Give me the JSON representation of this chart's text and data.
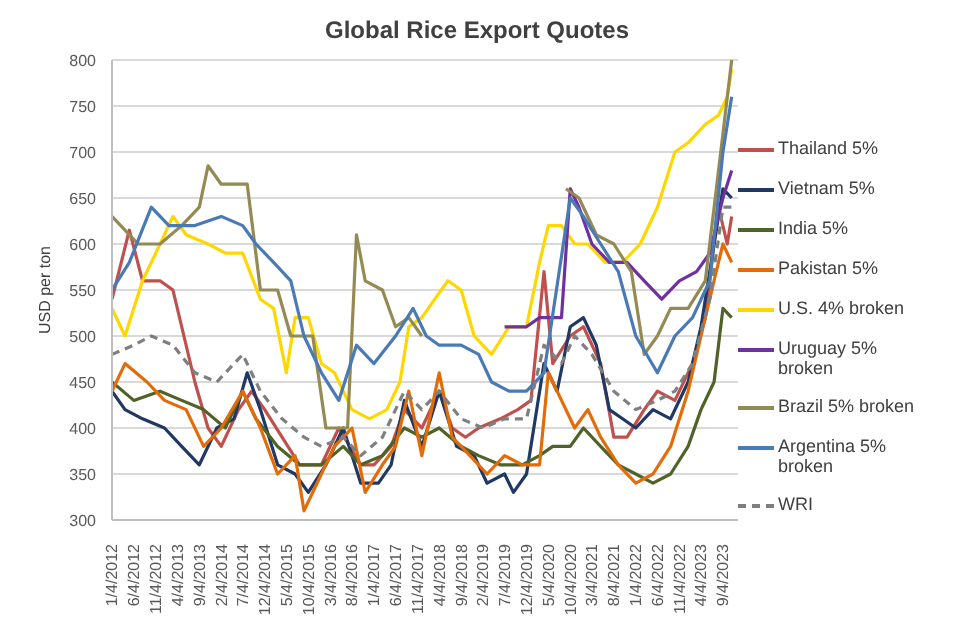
{
  "chart_data": {
    "type": "line",
    "title": "Global Rice Export Quotes",
    "ylabel": "USD per ton",
    "xlim": [
      "2012-01-01",
      "2023-12-15"
    ],
    "xticks": [
      {
        "value": "2012-01-04",
        "label": "1/4/2012"
      },
      {
        "value": "2012-06-04",
        "label": "6/4/2012"
      },
      {
        "value": "2012-11-04",
        "label": "11/4/2012"
      },
      {
        "value": "2013-04-04",
        "label": "4/4/2013"
      },
      {
        "value": "2013-09-04",
        "label": "9/4/2013"
      },
      {
        "value": "2014-02-04",
        "label": "2/4/2014"
      },
      {
        "value": "2014-07-04",
        "label": "7/4/2014"
      },
      {
        "value": "2014-12-04",
        "label": "12/4/2014"
      },
      {
        "value": "2015-05-04",
        "label": "5/4/2015"
      },
      {
        "value": "2015-10-04",
        "label": "10/4/2015"
      },
      {
        "value": "2016-03-04",
        "label": "3/4/2016"
      },
      {
        "value": "2016-08-04",
        "label": "8/4/2016"
      },
      {
        "value": "2017-01-04",
        "label": "1/4/2017"
      },
      {
        "value": "2017-06-04",
        "label": "6/4/2017"
      },
      {
        "value": "2017-11-04",
        "label": "11/4/2017"
      },
      {
        "value": "2018-04-04",
        "label": "4/4/2018"
      },
      {
        "value": "2018-09-04",
        "label": "9/4/2018"
      },
      {
        "value": "2019-02-04",
        "label": "2/4/2019"
      },
      {
        "value": "2019-07-04",
        "label": "7/4/2019"
      },
      {
        "value": "2019-12-04",
        "label": "12/4/2019"
      },
      {
        "value": "2020-05-04",
        "label": "5/4/2020"
      },
      {
        "value": "2020-10-04",
        "label": "10/4/2020"
      },
      {
        "value": "2021-03-04",
        "label": "3/4/2021"
      },
      {
        "value": "2021-08-04",
        "label": "8/4/2021"
      },
      {
        "value": "2022-01-04",
        "label": "1/4/2022"
      },
      {
        "value": "2022-06-04",
        "label": "6/4/2022"
      },
      {
        "value": "2022-11-04",
        "label": "11/4/2022"
      },
      {
        "value": "2023-04-04",
        "label": "4/4/2023"
      },
      {
        "value": "2023-09-04",
        "label": "9/4/2023"
      }
    ],
    "ylim": [
      300,
      800
    ],
    "yticks": [
      300,
      350,
      400,
      450,
      500,
      550,
      600,
      650,
      700,
      750,
      800
    ],
    "grid": "y",
    "legend": "right",
    "marker": "none",
    "series": [
      {
        "name": "Thailand 5%",
        "color": "#c0504d",
        "x": [
          "2012-01",
          "2012-05",
          "2012-08",
          "2012-12",
          "2013-03",
          "2013-08",
          "2013-11",
          "2014-02",
          "2014-06",
          "2014-09",
          "2014-12",
          "2015-04",
          "2015-08",
          "2016-01",
          "2016-05",
          "2016-10",
          "2017-01",
          "2017-05",
          "2017-08",
          "2017-12",
          "2018-04",
          "2018-07",
          "2018-10",
          "2019-01",
          "2019-06",
          "2019-10",
          "2020-01",
          "2020-04",
          "2020-06",
          "2020-10",
          "2021-01",
          "2021-05",
          "2021-08",
          "2021-11",
          "2022-03",
          "2022-06",
          "2022-10",
          "2023-02",
          "2023-05",
          "2023-08",
          "2023-10",
          "2023-11"
        ],
        "values": [
          540,
          615,
          560,
          560,
          550,
          450,
          400,
          380,
          420,
          440,
          420,
          390,
          360,
          360,
          400,
          360,
          360,
          380,
          420,
          400,
          440,
          400,
          390,
          400,
          410,
          420,
          430,
          570,
          470,
          500,
          510,
          470,
          390,
          390,
          420,
          440,
          430,
          470,
          520,
          640,
          600,
          630
        ]
      },
      {
        "name": "Vietnam 5%",
        "color": "#1f3864",
        "x": [
          "2012-01",
          "2012-04",
          "2012-08",
          "2013-01",
          "2013-05",
          "2013-09",
          "2014-01",
          "2014-05",
          "2014-08",
          "2014-11",
          "2015-03",
          "2015-07",
          "2015-10",
          "2016-02",
          "2016-06",
          "2016-10",
          "2017-02",
          "2017-05",
          "2017-08",
          "2017-12",
          "2018-04",
          "2018-08",
          "2018-12",
          "2019-03",
          "2019-07",
          "2019-09",
          "2019-12",
          "2020-04",
          "2020-07",
          "2020-10",
          "2021-01",
          "2021-04",
          "2021-07",
          "2021-10",
          "2022-01",
          "2022-05",
          "2022-09",
          "2023-01",
          "2023-04",
          "2023-07",
          "2023-09",
          "2023-11"
        ],
        "values": [
          440,
          420,
          410,
          400,
          380,
          360,
          400,
          410,
          460,
          420,
          360,
          350,
          330,
          360,
          400,
          340,
          340,
          360,
          430,
          380,
          440,
          380,
          370,
          340,
          350,
          330,
          350,
          470,
          440,
          510,
          520,
          490,
          420,
          410,
          400,
          420,
          410,
          450,
          510,
          600,
          660,
          650
        ]
      },
      {
        "name": "India 5%",
        "color": "#4f6228",
        "x": [
          "2012-01",
          "2012-06",
          "2012-12",
          "2013-05",
          "2013-10",
          "2014-03",
          "2014-07",
          "2014-10",
          "2015-03",
          "2015-08",
          "2016-01",
          "2016-06",
          "2016-10",
          "2017-03",
          "2017-08",
          "2017-12",
          "2018-04",
          "2018-09",
          "2019-01",
          "2019-06",
          "2019-11",
          "2020-03",
          "2020-06",
          "2020-10",
          "2021-01",
          "2021-05",
          "2021-09",
          "2022-01",
          "2022-05",
          "2022-09",
          "2023-01",
          "2023-04",
          "2023-07",
          "2023-09",
          "2023-11"
        ],
        "values": [
          450,
          430,
          440,
          430,
          420,
          400,
          440,
          410,
          380,
          360,
          360,
          380,
          360,
          370,
          400,
          390,
          400,
          380,
          370,
          360,
          360,
          370,
          380,
          380,
          400,
          380,
          360,
          350,
          340,
          350,
          380,
          420,
          450,
          530,
          520
        ]
      },
      {
        "name": "Pakistan 5%",
        "color": "#e36c09",
        "x": [
          "2012-01",
          "2012-04",
          "2012-09",
          "2013-01",
          "2013-06",
          "2013-10",
          "2014-02",
          "2014-07",
          "2014-11",
          "2015-03",
          "2015-07",
          "2015-09",
          "2015-12",
          "2016-04",
          "2016-08",
          "2016-11",
          "2017-03",
          "2017-06",
          "2017-09",
          "2017-12",
          "2018-04",
          "2018-07",
          "2018-11",
          "2019-03",
          "2019-07",
          "2019-11",
          "2020-03",
          "2020-05",
          "2020-08",
          "2020-11",
          "2021-02",
          "2021-05",
          "2021-09",
          "2022-01",
          "2022-05",
          "2022-09",
          "2023-01",
          "2023-04",
          "2023-07",
          "2023-09",
          "2023-11"
        ],
        "values": [
          440,
          470,
          450,
          430,
          420,
          380,
          400,
          440,
          400,
          350,
          370,
          310,
          340,
          380,
          400,
          330,
          360,
          380,
          440,
          370,
          460,
          390,
          370,
          350,
          370,
          360,
          360,
          460,
          430,
          400,
          420,
          390,
          360,
          340,
          350,
          380,
          440,
          500,
          560,
          600,
          580
        ]
      },
      {
        "name": "U.S. 4% broken",
        "color": "#ffd700",
        "x": [
          "2012-01",
          "2012-04",
          "2012-08",
          "2012-11",
          "2013-03",
          "2013-06",
          "2013-11",
          "2014-03",
          "2014-07",
          "2014-11",
          "2015-02",
          "2015-05",
          "2015-07",
          "2015-10",
          "2016-01",
          "2016-04",
          "2016-08",
          "2016-12",
          "2017-04",
          "2017-07",
          "2017-09",
          "2017-12",
          "2018-03",
          "2018-06",
          "2018-09",
          "2018-12",
          "2019-04",
          "2019-08",
          "2019-12",
          "2020-03",
          "2020-05",
          "2020-08",
          "2020-11",
          "2021-02",
          "2021-06",
          "2021-10",
          "2022-02",
          "2022-06",
          "2022-10",
          "2023-01",
          "2023-05",
          "2023-08",
          "2023-10",
          "2023-11"
        ],
        "values": [
          530,
          500,
          560,
          590,
          630,
          610,
          600,
          590,
          590,
          540,
          530,
          460,
          520,
          520,
          470,
          460,
          420,
          410,
          420,
          450,
          510,
          520,
          540,
          560,
          550,
          500,
          480,
          510,
          510,
          580,
          620,
          620,
          600,
          600,
          580,
          580,
          600,
          640,
          700,
          710,
          730,
          740,
          760,
          790
        ]
      },
      {
        "name": "Uruguay 5% broken",
        "color": "#7030a0",
        "x": [
          "2019-07",
          "2019-12",
          "2020-03",
          "2020-08",
          "2020-10",
          "2020-12",
          "2021-03",
          "2021-07",
          "2021-11",
          "2022-03",
          "2022-07",
          "2022-11",
          "2023-03",
          "2023-06",
          "2023-09",
          "2023-11"
        ],
        "values": [
          510,
          510,
          520,
          520,
          660,
          640,
          600,
          580,
          580,
          560,
          540,
          560,
          570,
          590,
          650,
          680
        ]
      },
      {
        "name": "Brazil 5% broken",
        "color": "#948a54",
        "x": [
          "2012-01",
          "2012-07",
          "2012-12",
          "2013-05",
          "2013-09",
          "2013-11",
          "2014-02",
          "2014-08",
          "2014-11",
          "2015-03",
          "2015-06",
          "2015-11",
          "2016-02",
          "2016-07",
          "2016-09",
          "2016-11",
          "2017-03",
          "2017-06",
          "2017-09",
          "2017-12",
          "2019-01",
          "2020-09",
          "2020-12",
          "2021-04",
          "2021-08",
          "2021-12",
          "2022-03",
          "2022-06",
          "2022-09",
          "2023-01",
          "2023-05",
          "2023-09",
          "2023-11"
        ],
        "values": [
          630,
          600,
          600,
          620,
          640,
          685,
          665,
          665,
          550,
          550,
          500,
          500,
          400,
          400,
          610,
          560,
          550,
          510,
          520,
          500,
          null,
          660,
          650,
          610,
          600,
          570,
          480,
          500,
          530,
          530,
          560,
          720,
          800
        ]
      },
      {
        "name": "Argentina 5% broken",
        "color": "#4a7ab5",
        "x": [
          "2012-01",
          "2012-05",
          "2012-10",
          "2013-02",
          "2013-08",
          "2014-02",
          "2014-07",
          "2014-10",
          "2015-02",
          "2015-06",
          "2015-09",
          "2016-01",
          "2016-05",
          "2016-09",
          "2017-01",
          "2017-06",
          "2017-10",
          "2018-01",
          "2018-04",
          "2018-09",
          "2019-01",
          "2019-04",
          "2019-08",
          "2019-12",
          "2020-04",
          "2020-10",
          "2021-01",
          "2021-05",
          "2021-09",
          "2022-01",
          "2022-06",
          "2022-10",
          "2023-02",
          "2023-06",
          "2023-09",
          "2023-11"
        ],
        "values": [
          550,
          580,
          640,
          620,
          620,
          630,
          620,
          600,
          580,
          560,
          500,
          460,
          430,
          490,
          470,
          500,
          530,
          500,
          490,
          490,
          480,
          450,
          440,
          440,
          460,
          650,
          630,
          600,
          570,
          500,
          460,
          500,
          520,
          560,
          700,
          760
        ]
      },
      {
        "name": "WRI",
        "color": "#7f7f7f",
        "line_style": "dashed",
        "x": [
          "2012-01",
          "2012-06",
          "2012-10",
          "2013-03",
          "2013-08",
          "2014-01",
          "2014-07",
          "2014-11",
          "2015-04",
          "2015-09",
          "2016-01",
          "2016-06",
          "2016-10",
          "2017-03",
          "2017-08",
          "2017-12",
          "2018-04",
          "2018-09",
          "2019-02",
          "2019-07",
          "2019-12",
          "2020-04",
          "2020-08",
          "2020-11",
          "2021-03",
          "2021-08",
          "2022-01",
          "2022-06",
          "2022-10",
          "2023-02",
          "2023-06",
          "2023-09",
          "2023-11"
        ],
        "values": [
          480,
          490,
          500,
          490,
          460,
          450,
          480,
          440,
          410,
          390,
          380,
          390,
          370,
          390,
          440,
          420,
          440,
          410,
          400,
          410,
          410,
          490,
          470,
          500,
          480,
          440,
          420,
          430,
          440,
          470,
          540,
          640,
          640
        ]
      }
    ]
  }
}
